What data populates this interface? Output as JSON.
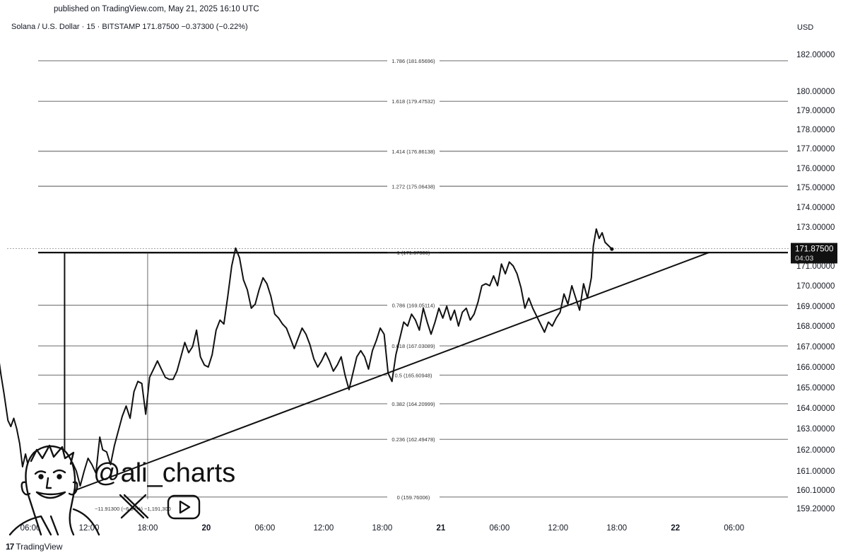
{
  "header": {
    "published": "published on TradingView.com, May 21, 2025 16:10 UTC",
    "symbol_line": "Solana / U.S. Dollar · 15 · BITSTAMP  171.87500  −0.37300 (−0.22%)",
    "currency": "USD"
  },
  "branding": {
    "footer_logo": "TradingView",
    "footer_logo_mark": "17",
    "watermark_handle": "@ali_charts",
    "icons": [
      "cartoon-avatar-icon",
      "x-logo-icon",
      "youtube-play-icon"
    ]
  },
  "chart_data": {
    "type": "line",
    "title": "Solana / U.S. Dollar · 15 · BITSTAMP",
    "y_axis_ticks": [
      "182.00000",
      "180.00000",
      "179.00000",
      "178.00000",
      "177.00000",
      "176.00000",
      "175.00000",
      "174.00000",
      "173.00000",
      "171.00000",
      "170.00000",
      "169.00000",
      "168.00000",
      "167.00000",
      "166.00000",
      "165.00000",
      "164.00000",
      "163.00000",
      "162.00000",
      "161.00000",
      "160.10000",
      "159.20000"
    ],
    "x_axis_ticks": [
      {
        "label": "06:00",
        "t": 0,
        "bold": false
      },
      {
        "label": "12:00",
        "t": 6,
        "bold": false
      },
      {
        "label": "18:00",
        "t": 12,
        "bold": false
      },
      {
        "label": "20",
        "t": 18,
        "bold": true
      },
      {
        "label": "06:00",
        "t": 24,
        "bold": false
      },
      {
        "label": "12:00",
        "t": 30,
        "bold": false
      },
      {
        "label": "18:00",
        "t": 36,
        "bold": false
      },
      {
        "label": "21",
        "t": 42,
        "bold": true
      },
      {
        "label": "06:00",
        "t": 48,
        "bold": false
      },
      {
        "label": "12:00",
        "t": 54,
        "bold": false
      },
      {
        "label": "18:00",
        "t": 60,
        "bold": false
      },
      {
        "label": "22",
        "t": 66,
        "bold": true
      },
      {
        "label": "06:00",
        "t": 72,
        "bold": false
      }
    ],
    "fib_levels": [
      {
        "label": "1.786 (181.65696)",
        "value": 181.65696
      },
      {
        "label": "1.618 (179.47532)",
        "value": 179.47532
      },
      {
        "label": "1.414 (176.86138)",
        "value": 176.86138
      },
      {
        "label": "1.272 (175.06438)",
        "value": 175.06438
      },
      {
        "label": "1 (171.67306)",
        "value": 171.67306
      },
      {
        "label": "0.786 (169.05114)",
        "value": 169.05114
      },
      {
        "label": "0.618 (167.03089)",
        "value": 167.03089
      },
      {
        "label": "0.5 (165.60948)",
        "value": 165.60948
      },
      {
        "label": "0.382 (164.20999)",
        "value": 164.20999
      },
      {
        "label": "0.236 (162.49478)",
        "value": 162.49478
      },
      {
        "label": "0 (159.76006)",
        "value": 159.76006
      }
    ],
    "current_price": {
      "value": 171.875,
      "label": "171.87500",
      "countdown": "04:03"
    },
    "measure_label": "−11.91300 (−6.94%) −1,191,300",
    "trendline": {
      "start": {
        "t": 3.5,
        "price": 159.9
      },
      "end": {
        "t": 69.4,
        "price": 171.67
      }
    },
    "range_box": {
      "t_start": 3.5,
      "t_end": 69.4,
      "price_low": 159.76,
      "price_high": 171.67
    },
    "crosshair_t": 12,
    "series": [
      {
        "values": [
          [
            -3.5,
            166.0
          ],
          [
            -3.3,
            166.6
          ],
          [
            -3.0,
            165.6
          ],
          [
            -2.7,
            164.7
          ],
          [
            -2.3,
            163.4
          ],
          [
            -2.0,
            163.1
          ],
          [
            -1.7,
            163.5
          ],
          [
            -1.4,
            163.0
          ],
          [
            -1.1,
            162.3
          ],
          [
            -0.8,
            161.2
          ],
          [
            -0.5,
            161.8
          ],
          [
            -0.2,
            161.2
          ],
          [
            0.4,
            161.4
          ],
          [
            0.8,
            162.0
          ],
          [
            1.2,
            161.3
          ],
          [
            1.6,
            160.9
          ],
          [
            2.0,
            161.5
          ],
          [
            2.4,
            161.7
          ],
          [
            2.8,
            161.0
          ],
          [
            3.2,
            160.7
          ],
          [
            3.6,
            160.1
          ],
          [
            3.9,
            160.5
          ],
          [
            4.3,
            161.4
          ],
          [
            4.7,
            161.0
          ],
          [
            5.1,
            160.3
          ],
          [
            5.5,
            161.0
          ],
          [
            5.9,
            161.6
          ],
          [
            6.3,
            161.3
          ],
          [
            6.7,
            160.9
          ],
          [
            7.1,
            162.6
          ],
          [
            7.4,
            162.0
          ],
          [
            7.8,
            161.9
          ],
          [
            8.2,
            161.3
          ],
          [
            8.6,
            162.2
          ],
          [
            9.0,
            162.9
          ],
          [
            9.4,
            163.6
          ],
          [
            9.8,
            164.1
          ],
          [
            10.2,
            163.5
          ],
          [
            10.6,
            164.8
          ],
          [
            11.0,
            165.3
          ],
          [
            11.4,
            165.2
          ],
          [
            11.8,
            163.7
          ],
          [
            12.2,
            165.5
          ],
          [
            12.6,
            165.9
          ],
          [
            13.0,
            166.3
          ],
          [
            13.4,
            165.9
          ],
          [
            13.8,
            165.5
          ],
          [
            14.2,
            165.4
          ],
          [
            14.6,
            165.4
          ],
          [
            15.0,
            165.8
          ],
          [
            15.4,
            166.5
          ],
          [
            15.8,
            167.2
          ],
          [
            16.2,
            166.7
          ],
          [
            16.6,
            167.0
          ],
          [
            17.0,
            167.8
          ],
          [
            17.4,
            166.5
          ],
          [
            17.8,
            166.1
          ],
          [
            18.2,
            166.0
          ],
          [
            18.6,
            166.6
          ],
          [
            19.0,
            167.8
          ],
          [
            19.4,
            168.3
          ],
          [
            19.8,
            168.1
          ],
          [
            20.2,
            169.5
          ],
          [
            20.6,
            171.0
          ],
          [
            21.0,
            171.9
          ],
          [
            21.4,
            171.4
          ],
          [
            21.8,
            170.3
          ],
          [
            22.2,
            169.8
          ],
          [
            22.6,
            168.9
          ],
          [
            23.0,
            169.1
          ],
          [
            23.4,
            169.8
          ],
          [
            23.8,
            170.4
          ],
          [
            24.2,
            170.1
          ],
          [
            24.6,
            169.5
          ],
          [
            25.0,
            168.6
          ],
          [
            25.4,
            168.4
          ],
          [
            25.8,
            168.1
          ],
          [
            26.2,
            167.9
          ],
          [
            26.6,
            167.4
          ],
          [
            27.0,
            166.9
          ],
          [
            27.4,
            167.4
          ],
          [
            27.8,
            167.9
          ],
          [
            28.2,
            167.6
          ],
          [
            28.6,
            167.1
          ],
          [
            29.0,
            166.4
          ],
          [
            29.4,
            166.0
          ],
          [
            29.8,
            166.3
          ],
          [
            30.2,
            166.7
          ],
          [
            30.6,
            166.3
          ],
          [
            31.0,
            165.8
          ],
          [
            31.4,
            166.1
          ],
          [
            31.8,
            166.5
          ],
          [
            32.2,
            165.6
          ],
          [
            32.6,
            164.9
          ],
          [
            33.0,
            165.7
          ],
          [
            33.4,
            166.5
          ],
          [
            33.8,
            166.8
          ],
          [
            34.2,
            166.5
          ],
          [
            34.6,
            165.9
          ],
          [
            35.0,
            166.8
          ],
          [
            35.4,
            167.3
          ],
          [
            35.8,
            167.9
          ],
          [
            36.2,
            167.6
          ],
          [
            36.6,
            165.7
          ],
          [
            37.0,
            165.3
          ],
          [
            37.4,
            166.6
          ],
          [
            37.8,
            167.4
          ],
          [
            38.2,
            168.2
          ],
          [
            38.6,
            168.0
          ],
          [
            39.0,
            168.6
          ],
          [
            39.4,
            168.3
          ],
          [
            39.8,
            167.8
          ],
          [
            40.2,
            168.9
          ],
          [
            40.6,
            168.2
          ],
          [
            41.0,
            167.6
          ],
          [
            41.4,
            168.2
          ],
          [
            41.8,
            168.9
          ],
          [
            42.2,
            168.4
          ],
          [
            42.6,
            169.0
          ],
          [
            43.0,
            168.3
          ],
          [
            43.4,
            168.8
          ],
          [
            43.8,
            168.0
          ],
          [
            44.2,
            168.7
          ],
          [
            44.6,
            168.9
          ],
          [
            45.0,
            168.3
          ],
          [
            45.4,
            168.6
          ],
          [
            45.8,
            169.2
          ],
          [
            46.2,
            170.0
          ],
          [
            46.6,
            170.1
          ],
          [
            47.0,
            170.0
          ],
          [
            47.4,
            170.5
          ],
          [
            47.8,
            170.0
          ],
          [
            48.2,
            171.1
          ],
          [
            48.6,
            170.6
          ],
          [
            49.0,
            171.2
          ],
          [
            49.4,
            171.0
          ],
          [
            49.8,
            170.6
          ],
          [
            50.2,
            169.9
          ],
          [
            50.6,
            168.9
          ],
          [
            51.0,
            169.4
          ],
          [
            51.4,
            168.9
          ],
          [
            51.8,
            168.5
          ],
          [
            52.2,
            168.1
          ],
          [
            52.6,
            167.7
          ],
          [
            53.0,
            168.2
          ],
          [
            53.4,
            168.0
          ],
          [
            53.8,
            168.4
          ],
          [
            54.2,
            168.7
          ],
          [
            54.6,
            169.6
          ],
          [
            55.0,
            169.1
          ],
          [
            55.4,
            170.0
          ],
          [
            55.8,
            169.4
          ],
          [
            56.2,
            168.8
          ],
          [
            56.6,
            170.1
          ],
          [
            57.0,
            169.4
          ],
          [
            57.4,
            170.4
          ],
          [
            57.6,
            172.0
          ],
          [
            57.9,
            172.9
          ],
          [
            58.2,
            172.4
          ],
          [
            58.5,
            172.7
          ],
          [
            58.8,
            172.2
          ],
          [
            59.2,
            172.0
          ],
          [
            59.5,
            171.85
          ]
        ]
      }
    ]
  }
}
